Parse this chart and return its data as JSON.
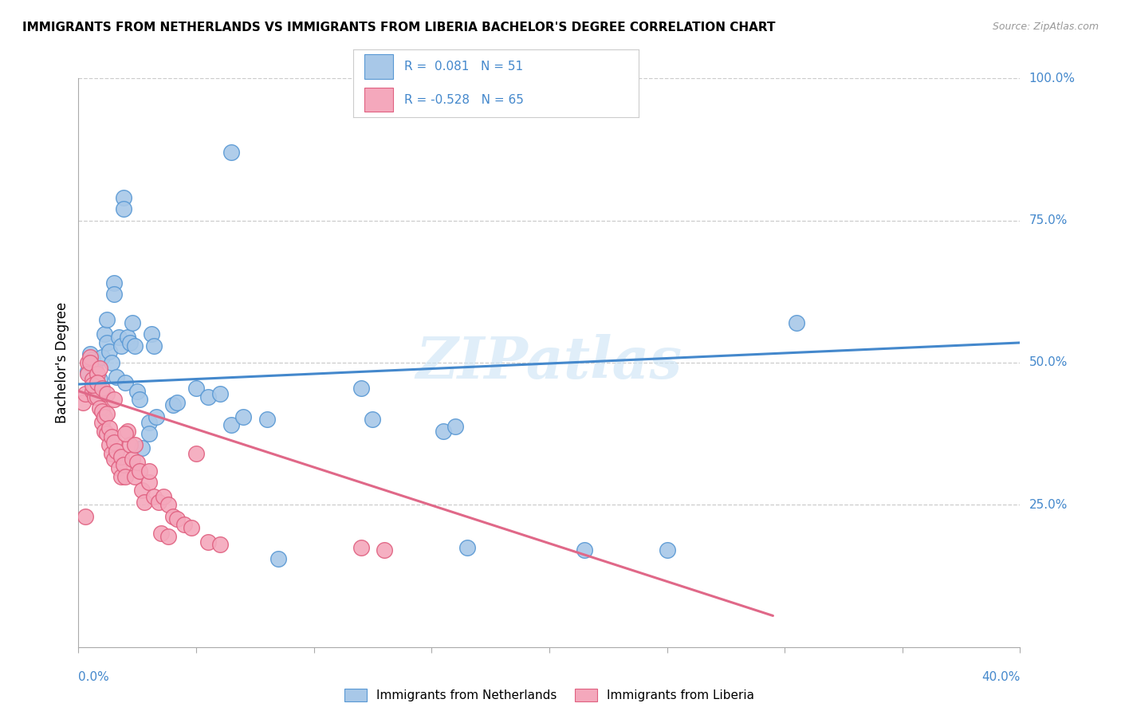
{
  "title": "IMMIGRANTS FROM NETHERLANDS VS IMMIGRANTS FROM LIBERIA BACHELOR'S DEGREE CORRELATION CHART",
  "source": "Source: ZipAtlas.com",
  "ylabel": "Bachelor's Degree",
  "xmin": 0.0,
  "xmax": 0.4,
  "ymin": 0.0,
  "ymax": 1.0,
  "watermark": "ZIPatlas",
  "netherlands_color": "#a8c8e8",
  "liberia_color": "#f4a8bc",
  "netherlands_edge_color": "#5898d4",
  "liberia_edge_color": "#e06080",
  "netherlands_line_color": "#4488cc",
  "liberia_line_color": "#e06888",
  "legend_blue_color": "#a8c8e8",
  "legend_pink_color": "#f4a8bc",
  "legend_text_color": "#4488cc",
  "right_axis_color": "#4488cc",
  "netherlands_scatter": [
    [
      0.004,
      0.485
    ],
    [
      0.005,
      0.515
    ],
    [
      0.006,
      0.505
    ],
    [
      0.007,
      0.49
    ],
    [
      0.008,
      0.465
    ],
    [
      0.009,
      0.47
    ],
    [
      0.01,
      0.45
    ],
    [
      0.01,
      0.51
    ],
    [
      0.011,
      0.55
    ],
    [
      0.012,
      0.575
    ],
    [
      0.012,
      0.535
    ],
    [
      0.013,
      0.52
    ],
    [
      0.014,
      0.5
    ],
    [
      0.015,
      0.64
    ],
    [
      0.015,
      0.62
    ],
    [
      0.016,
      0.475
    ],
    [
      0.017,
      0.545
    ],
    [
      0.018,
      0.53
    ],
    [
      0.019,
      0.79
    ],
    [
      0.019,
      0.77
    ],
    [
      0.02,
      0.465
    ],
    [
      0.021,
      0.545
    ],
    [
      0.022,
      0.535
    ],
    [
      0.023,
      0.57
    ],
    [
      0.024,
      0.53
    ],
    [
      0.025,
      0.45
    ],
    [
      0.026,
      0.435
    ],
    [
      0.027,
      0.35
    ],
    [
      0.03,
      0.395
    ],
    [
      0.03,
      0.375
    ],
    [
      0.031,
      0.55
    ],
    [
      0.032,
      0.53
    ],
    [
      0.033,
      0.405
    ],
    [
      0.04,
      0.425
    ],
    [
      0.042,
      0.43
    ],
    [
      0.05,
      0.455
    ],
    [
      0.055,
      0.44
    ],
    [
      0.06,
      0.445
    ],
    [
      0.065,
      0.39
    ],
    [
      0.07,
      0.405
    ],
    [
      0.08,
      0.4
    ],
    [
      0.085,
      0.155
    ],
    [
      0.12,
      0.455
    ],
    [
      0.125,
      0.4
    ],
    [
      0.155,
      0.38
    ],
    [
      0.16,
      0.388
    ],
    [
      0.165,
      0.175
    ],
    [
      0.215,
      0.17
    ],
    [
      0.25,
      0.17
    ],
    [
      0.305,
      0.57
    ],
    [
      0.065,
      0.87
    ]
  ],
  "liberia_scatter": [
    [
      0.002,
      0.43
    ],
    [
      0.003,
      0.445
    ],
    [
      0.004,
      0.5
    ],
    [
      0.004,
      0.48
    ],
    [
      0.005,
      0.51
    ],
    [
      0.005,
      0.5
    ],
    [
      0.006,
      0.47
    ],
    [
      0.006,
      0.45
    ],
    [
      0.007,
      0.455
    ],
    [
      0.007,
      0.44
    ],
    [
      0.008,
      0.48
    ],
    [
      0.008,
      0.44
    ],
    [
      0.009,
      0.49
    ],
    [
      0.009,
      0.42
    ],
    [
      0.01,
      0.415
    ],
    [
      0.01,
      0.395
    ],
    [
      0.011,
      0.405
    ],
    [
      0.011,
      0.38
    ],
    [
      0.012,
      0.41
    ],
    [
      0.012,
      0.375
    ],
    [
      0.013,
      0.385
    ],
    [
      0.013,
      0.355
    ],
    [
      0.014,
      0.37
    ],
    [
      0.014,
      0.34
    ],
    [
      0.015,
      0.36
    ],
    [
      0.015,
      0.33
    ],
    [
      0.016,
      0.345
    ],
    [
      0.017,
      0.315
    ],
    [
      0.018,
      0.335
    ],
    [
      0.018,
      0.3
    ],
    [
      0.019,
      0.32
    ],
    [
      0.02,
      0.3
    ],
    [
      0.021,
      0.38
    ],
    [
      0.022,
      0.355
    ],
    [
      0.023,
      0.33
    ],
    [
      0.024,
      0.3
    ],
    [
      0.025,
      0.325
    ],
    [
      0.026,
      0.31
    ],
    [
      0.027,
      0.275
    ],
    [
      0.028,
      0.255
    ],
    [
      0.03,
      0.29
    ],
    [
      0.032,
      0.265
    ],
    [
      0.034,
      0.255
    ],
    [
      0.036,
      0.265
    ],
    [
      0.038,
      0.25
    ],
    [
      0.04,
      0.23
    ],
    [
      0.042,
      0.225
    ],
    [
      0.045,
      0.215
    ],
    [
      0.048,
      0.21
    ],
    [
      0.05,
      0.34
    ],
    [
      0.055,
      0.185
    ],
    [
      0.06,
      0.18
    ],
    [
      0.003,
      0.23
    ],
    [
      0.006,
      0.46
    ],
    [
      0.008,
      0.465
    ],
    [
      0.01,
      0.455
    ],
    [
      0.012,
      0.445
    ],
    [
      0.015,
      0.435
    ],
    [
      0.02,
      0.375
    ],
    [
      0.024,
      0.355
    ],
    [
      0.03,
      0.31
    ],
    [
      0.035,
      0.2
    ],
    [
      0.038,
      0.195
    ],
    [
      0.12,
      0.175
    ],
    [
      0.13,
      0.17
    ]
  ],
  "netherlands_trend_x": [
    0.0,
    0.4
  ],
  "netherlands_trend_y": [
    0.462,
    0.535
  ],
  "liberia_trend_x": [
    0.0,
    0.295
  ],
  "liberia_trend_y": [
    0.45,
    0.055
  ]
}
